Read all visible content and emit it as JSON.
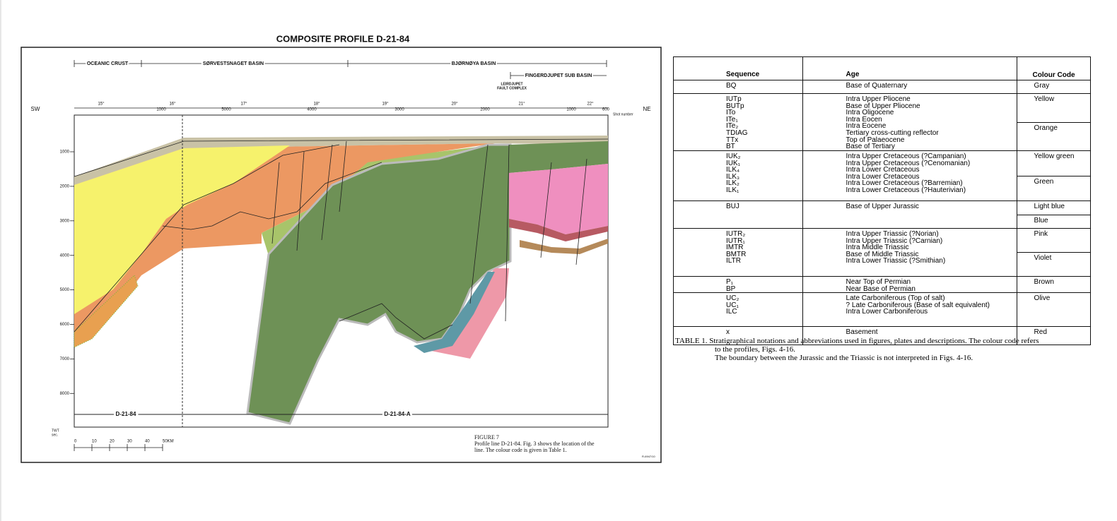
{
  "figure": {
    "title": "COMPOSITE PROFILE D-21-84",
    "regions": [
      "OCEANIC CRUST",
      "SØRVESTSNAGET BASIN",
      "BJØRNØYA BASIN",
      "FINGERDJUPET SUB BASIN"
    ],
    "fault_complex": [
      "LEIRDJUPET",
      "FAULT COMPLEX"
    ],
    "sw": "SW",
    "ne": "NE",
    "longitudes": [
      "15°",
      "16°",
      "17°",
      "18°",
      "19°",
      "20°",
      "21°",
      "22°"
    ],
    "shot_numbers": [
      "1000",
      "5000",
      "4000",
      "3000",
      "2000",
      "1000",
      "600"
    ],
    "shot_number_label": "Shot number",
    "depth_ticks": [
      "1000",
      "2000",
      "3000",
      "4000",
      "5000",
      "6000",
      "7000",
      "8000"
    ],
    "depth_unit": [
      "TWT",
      "sec."
    ],
    "line_labels": [
      "D-21-84",
      "D-21-84-A"
    ],
    "scale": [
      "0",
      "10",
      "20",
      "30",
      "40",
      "50KM"
    ],
    "caption_title": "FIGURE 7",
    "caption": [
      "Profile line D-21-84. Fig. 3 shows the location of the",
      "line. The colour code is given in Table 1."
    ],
    "code": "R-6947/10"
  },
  "table": {
    "headers": [
      "Sequence",
      "Age",
      "Colour Code"
    ],
    "groups": [
      {
        "sequences": [
          "BQ"
        ],
        "ages": [
          "Base of Quaternary"
        ],
        "colours": [
          "Gray"
        ]
      },
      {
        "sequences": [
          "IUTp",
          "BUTp",
          "ITo",
          "ITe₁",
          "ITe₂",
          "TDIAG",
          "TTx",
          "BT"
        ],
        "ages": [
          "Intra Upper Pliocene",
          "Base of Upper Pliocene",
          "Intra Oligocene",
          "Intra Eocen",
          "Intra Eocene",
          "Tertiary cross-cutting reflector",
          "Top of Palaeocene",
          "Base of Tertiary"
        ],
        "colours": [
          "Yellow",
          "Orange"
        ]
      },
      {
        "sequences": [
          "IUK₂",
          "IUK₁",
          "ILK₄",
          "ILK₃",
          "ILK₂",
          "ILK₁"
        ],
        "ages": [
          "Intra Upper Cretaceous (?Campanian)",
          "Intra Upper Cretaceous (?Cenomanian)",
          "Intra Lower Cretaceous",
          "Intra Lower Cretaceous",
          "Intra Lower Cretaceous (?Barremian)",
          "Intra Lower Cretaceous (?Hauterivian)"
        ],
        "colours": [
          "Yellow green",
          "Green"
        ]
      },
      {
        "sequences": [
          "BUJ"
        ],
        "ages": [
          "Base of Upper Jurassic"
        ],
        "colours": [
          "Light blue",
          "Blue"
        ]
      },
      {
        "sequences": [
          "IUTR₂",
          "IUTR₁",
          "IMTR",
          "BMTR",
          "ILTR"
        ],
        "ages": [
          "Intra Upper Triassic (?Norian)",
          "Intra Upper Triassic (?Carnian)",
          "Intra Middle Triassic",
          "Base of Middle Triassic",
          "Intra Lower Triassic (?Smithian)"
        ],
        "colours": [
          "Pink",
          "Violet"
        ]
      },
      {
        "sequences": [
          "P₁",
          "BP"
        ],
        "ages": [
          "Near Top of Permian",
          "Near Base of Permian"
        ],
        "colours": [
          "Brown"
        ]
      },
      {
        "sequences": [
          "UC₂",
          "UC₁",
          "ILC"
        ],
        "ages": [
          "Late Carboniferous (Top of salt)",
          "? Late Carboniferous (Base of salt equivalent)",
          "Intra Lower Carboniferous"
        ],
        "colours": [
          "Olive"
        ]
      },
      {
        "sequences": [
          "x"
        ],
        "ages": [
          "Basement"
        ],
        "colours": [
          "Red"
        ]
      }
    ],
    "caption": [
      "TABLE 1. Stratigraphical notations and abbreviations used in figures, plates and descriptions. The colour code refers",
      "to the profiles, Figs. 4-16.",
      "The boundary between the Jurassic and the Triassic is not interpreted in Figs. 4-16."
    ]
  }
}
